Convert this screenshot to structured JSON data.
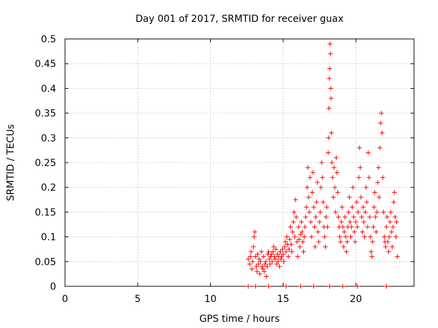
{
  "chart_data": {
    "type": "scatter",
    "title": "Day 001 of 2017, SRMTID for receiver guax",
    "xlabel": "GPS time / hours",
    "ylabel": "SRMTID / TECUs",
    "xlim": [
      0,
      24
    ],
    "ylim": [
      0,
      0.5
    ],
    "xticks": [
      0,
      5,
      10,
      15,
      20
    ],
    "yticks": [
      0,
      0.05,
      0.1,
      0.15,
      0.2,
      0.25,
      0.3,
      0.35,
      0.4,
      0.45,
      0.5
    ],
    "xtick_labels": [
      "0",
      "5",
      "10",
      "15",
      "20"
    ],
    "ytick_labels": [
      "0",
      "0.05",
      "0.1",
      "0.15",
      "0.2",
      "0.25",
      "0.3",
      "0.35",
      "0.4",
      "0.45",
      "0.5"
    ],
    "grid": true,
    "marker": "+",
    "series_color": "#ff0000",
    "series": [
      {
        "name": "SRMTID",
        "points": [
          [
            12.6,
            0.0
          ],
          [
            13.1,
            0.0
          ],
          [
            14.0,
            0.0
          ],
          [
            15.2,
            0.0
          ],
          [
            16.2,
            0.0
          ],
          [
            17.1,
            0.0
          ],
          [
            18.2,
            0.0
          ],
          [
            19.1,
            0.0
          ],
          [
            20.1,
            0.0
          ],
          [
            22.1,
            0.0
          ],
          [
            12.6,
            0.055
          ],
          [
            12.7,
            0.045
          ],
          [
            12.75,
            0.06
          ],
          [
            12.8,
            0.07
          ],
          [
            12.85,
            0.035
          ],
          [
            12.9,
            0.05
          ],
          [
            12.95,
            0.08
          ],
          [
            13.0,
            0.1
          ],
          [
            13.05,
            0.11
          ],
          [
            13.1,
            0.06
          ],
          [
            13.15,
            0.04
          ],
          [
            13.2,
            0.03
          ],
          [
            13.25,
            0.065
          ],
          [
            13.3,
            0.045
          ],
          [
            13.35,
            0.055
          ],
          [
            13.4,
            0.025
          ],
          [
            13.45,
            0.05
          ],
          [
            13.5,
            0.07
          ],
          [
            13.55,
            0.04
          ],
          [
            13.6,
            0.035
          ],
          [
            13.65,
            0.06
          ],
          [
            13.7,
            0.03
          ],
          [
            13.75,
            0.045
          ],
          [
            13.8,
            0.05
          ],
          [
            13.85,
            0.02
          ],
          [
            13.9,
            0.04
          ],
          [
            13.95,
            0.065
          ],
          [
            14.0,
            0.07
          ],
          [
            14.05,
            0.055
          ],
          [
            14.1,
            0.045
          ],
          [
            14.15,
            0.06
          ],
          [
            14.2,
            0.065
          ],
          [
            14.25,
            0.05
          ],
          [
            14.3,
            0.07
          ],
          [
            14.35,
            0.08
          ],
          [
            14.4,
            0.06
          ],
          [
            14.45,
            0.055
          ],
          [
            14.5,
            0.075
          ],
          [
            14.55,
            0.045
          ],
          [
            14.6,
            0.065
          ],
          [
            14.65,
            0.05
          ],
          [
            14.7,
            0.06
          ],
          [
            14.75,
            0.04
          ],
          [
            14.8,
            0.07
          ],
          [
            14.85,
            0.055
          ],
          [
            14.9,
            0.06
          ],
          [
            14.95,
            0.075
          ],
          [
            15.0,
            0.065
          ],
          [
            15.05,
            0.05
          ],
          [
            15.1,
            0.08
          ],
          [
            15.15,
            0.09
          ],
          [
            15.2,
            0.07
          ],
          [
            15.25,
            0.1
          ],
          [
            15.3,
            0.085
          ],
          [
            15.35,
            0.06
          ],
          [
            15.4,
            0.075
          ],
          [
            15.45,
            0.095
          ],
          [
            15.5,
            0.12
          ],
          [
            15.55,
            0.085
          ],
          [
            15.6,
            0.07
          ],
          [
            15.65,
            0.11
          ],
          [
            15.7,
            0.13
          ],
          [
            15.75,
            0.15
          ],
          [
            15.8,
            0.1
          ],
          [
            15.85,
            0.175
          ],
          [
            15.9,
            0.14
          ],
          [
            15.95,
            0.09
          ],
          [
            16.0,
            0.06
          ],
          [
            16.05,
            0.12
          ],
          [
            16.1,
            0.095
          ],
          [
            16.15,
            0.08
          ],
          [
            16.2,
            0.105
          ],
          [
            16.25,
            0.13
          ],
          [
            16.3,
            0.11
          ],
          [
            16.35,
            0.09
          ],
          [
            16.4,
            0.07
          ],
          [
            16.45,
            0.1
          ],
          [
            16.5,
            0.12
          ],
          [
            16.55,
            0.14
          ],
          [
            16.6,
            0.16
          ],
          [
            16.65,
            0.2
          ],
          [
            16.7,
            0.24
          ],
          [
            16.75,
            0.18
          ],
          [
            16.8,
            0.15
          ],
          [
            16.85,
            0.22
          ],
          [
            16.9,
            0.13
          ],
          [
            16.95,
            0.1
          ],
          [
            17.0,
            0.19
          ],
          [
            17.05,
            0.23
          ],
          [
            17.1,
            0.16
          ],
          [
            17.15,
            0.12
          ],
          [
            17.2,
            0.08
          ],
          [
            17.25,
            0.14
          ],
          [
            17.3,
            0.17
          ],
          [
            17.35,
            0.21
          ],
          [
            17.4,
            0.11
          ],
          [
            17.45,
            0.09
          ],
          [
            17.5,
            0.13
          ],
          [
            17.55,
            0.15
          ],
          [
            17.6,
            0.2
          ],
          [
            17.65,
            0.25
          ],
          [
            17.7,
            0.22
          ],
          [
            17.75,
            0.17
          ],
          [
            17.8,
            0.12
          ],
          [
            17.85,
            0.1
          ],
          [
            17.9,
            0.08
          ],
          [
            17.95,
            0.14
          ],
          [
            18.0,
            0.16
          ],
          [
            18.05,
            0.12
          ],
          [
            18.1,
            0.27
          ],
          [
            18.12,
            0.3
          ],
          [
            18.15,
            0.36
          ],
          [
            18.17,
            0.42
          ],
          [
            18.2,
            0.44
          ],
          [
            18.22,
            0.49
          ],
          [
            18.25,
            0.47
          ],
          [
            18.27,
            0.4
          ],
          [
            18.3,
            0.38
          ],
          [
            18.32,
            0.31
          ],
          [
            18.35,
            0.25
          ],
          [
            18.4,
            0.22
          ],
          [
            18.45,
            0.18
          ],
          [
            18.5,
            0.24
          ],
          [
            18.55,
            0.2
          ],
          [
            18.6,
            0.15
          ],
          [
            18.65,
            0.26
          ],
          [
            18.7,
            0.23
          ],
          [
            18.75,
            0.19
          ],
          [
            18.8,
            0.14
          ],
          [
            18.85,
            0.12
          ],
          [
            18.9,
            0.1
          ],
          [
            18.95,
            0.09
          ],
          [
            19.0,
            0.13
          ],
          [
            19.05,
            0.16
          ],
          [
            19.1,
            0.12
          ],
          [
            19.15,
            0.08
          ],
          [
            19.2,
            0.11
          ],
          [
            19.25,
            0.14
          ],
          [
            19.3,
            0.1
          ],
          [
            19.35,
            0.07
          ],
          [
            19.4,
            0.09
          ],
          [
            19.45,
            0.12
          ],
          [
            19.5,
            0.15
          ],
          [
            19.55,
            0.18
          ],
          [
            19.6,
            0.13
          ],
          [
            19.65,
            0.1
          ],
          [
            19.7,
            0.12
          ],
          [
            19.75,
            0.16
          ],
          [
            19.8,
            0.2
          ],
          [
            19.85,
            0.14
          ],
          [
            19.9,
            0.11
          ],
          [
            19.95,
            0.09
          ],
          [
            20.0,
            0.13
          ],
          [
            20.05,
            0.17
          ],
          [
            20.1,
            0.12
          ],
          [
            20.15,
            0.15
          ],
          [
            20.2,
            0.22
          ],
          [
            20.25,
            0.28
          ],
          [
            20.3,
            0.24
          ],
          [
            20.35,
            0.18
          ],
          [
            20.4,
            0.14
          ],
          [
            20.45,
            0.11
          ],
          [
            20.5,
            0.16
          ],
          [
            20.55,
            0.13
          ],
          [
            20.6,
            0.1
          ],
          [
            20.65,
            0.15
          ],
          [
            20.7,
            0.2
          ],
          [
            20.75,
            0.17
          ],
          [
            20.8,
            0.12
          ],
          [
            20.85,
            0.27
          ],
          [
            20.9,
            0.22
          ],
          [
            20.95,
            0.14
          ],
          [
            21.0,
            0.1
          ],
          [
            21.05,
            0.07
          ],
          [
            21.1,
            0.06
          ],
          [
            21.15,
            0.09
          ],
          [
            21.2,
            0.12
          ],
          [
            21.25,
            0.16
          ],
          [
            21.3,
            0.19
          ],
          [
            21.35,
            0.14
          ],
          [
            21.4,
            0.11
          ],
          [
            21.45,
            0.15
          ],
          [
            21.5,
            0.21
          ],
          [
            21.55,
            0.24
          ],
          [
            21.6,
            0.18
          ],
          [
            21.65,
            0.28
          ],
          [
            21.7,
            0.33
          ],
          [
            21.75,
            0.35
          ],
          [
            21.8,
            0.31
          ],
          [
            21.85,
            0.22
          ],
          [
            21.9,
            0.15
          ],
          [
            21.95,
            0.1
          ],
          [
            22.0,
            0.09
          ],
          [
            22.05,
            0.08
          ],
          [
            22.1,
            0.12
          ],
          [
            22.15,
            0.14
          ],
          [
            22.2,
            0.09
          ],
          [
            22.25,
            0.07
          ],
          [
            22.3,
            0.1
          ],
          [
            22.35,
            0.13
          ],
          [
            22.4,
            0.15
          ],
          [
            22.45,
            0.11
          ],
          [
            22.5,
            0.08
          ],
          [
            22.55,
            0.12
          ],
          [
            22.6,
            0.17
          ],
          [
            22.65,
            0.19
          ],
          [
            22.7,
            0.14
          ],
          [
            22.75,
            0.1
          ],
          [
            22.8,
            0.13
          ],
          [
            22.85,
            0.06
          ]
        ]
      }
    ]
  }
}
